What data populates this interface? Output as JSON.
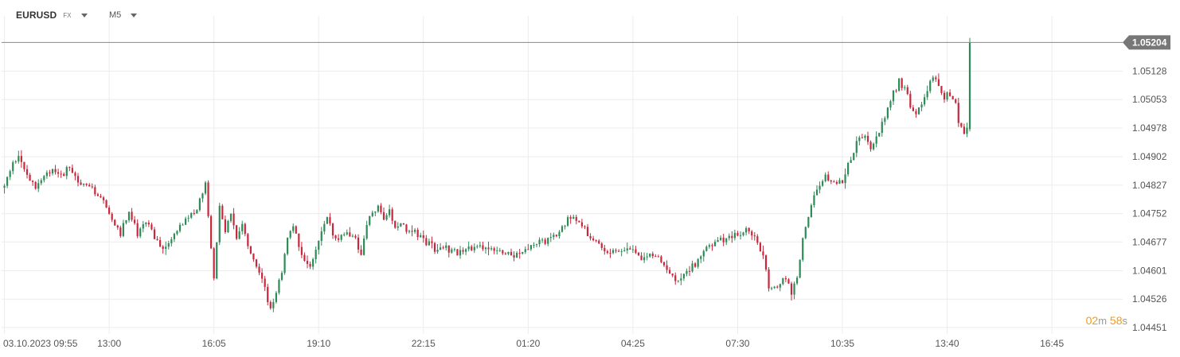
{
  "header": {
    "symbol": "EURUSD",
    "symbol_type": "FX",
    "timeframe": "M5"
  },
  "countdown": {
    "minutes": "02",
    "minutes_unit": "m",
    "seconds": "58",
    "seconds_unit": "s"
  },
  "colors": {
    "up": "#2e8b57",
    "down": "#c8283c",
    "grid": "#ececec",
    "current_price_line": "#888888",
    "current_price_badge": "#777777",
    "countdown": "#f39c12"
  },
  "chart_data": {
    "type": "candlestick",
    "timeframe": "M5",
    "y_ticks": [
      "1.05128",
      "1.05053",
      "1.04978",
      "1.04902",
      "1.04827",
      "1.04752",
      "1.04677",
      "1.04601",
      "1.04526",
      "1.04451"
    ],
    "x_ticks": [
      "03.10.2023  09:55",
      "13:00",
      "16:05",
      "19:10",
      "22:15",
      "01:20",
      "04:25",
      "07:30",
      "10:35",
      "13:40",
      "16:45"
    ],
    "x_tick_values": [
      0,
      37,
      74,
      111,
      148,
      185,
      222,
      259,
      296,
      333,
      370
    ],
    "ylim": [
      1.04434,
      1.05274
    ],
    "xlim": [
      -1,
      395
    ],
    "current_price": "1.05204",
    "grid": true,
    "price_path": [
      [
        0,
        1.0482
      ],
      [
        3,
        1.0488
      ],
      [
        5,
        1.0491
      ],
      [
        8,
        1.0485
      ],
      [
        11,
        1.0482
      ],
      [
        14,
        1.0485
      ],
      [
        17,
        1.0487
      ],
      [
        20,
        1.0485
      ],
      [
        23,
        1.0488
      ],
      [
        26,
        1.0483
      ],
      [
        29,
        1.0483
      ],
      [
        32,
        1.0481
      ],
      [
        35,
        1.0478
      ],
      [
        38,
        1.0474
      ],
      [
        41,
        1.047
      ],
      [
        44,
        1.0476
      ],
      [
        47,
        1.047
      ],
      [
        50,
        1.0473
      ],
      [
        53,
        1.0469
      ],
      [
        56,
        1.0466
      ],
      [
        59,
        1.0468
      ],
      [
        62,
        1.0472
      ],
      [
        65,
        1.0474
      ],
      [
        68,
        1.0476
      ],
      [
        71,
        1.0484
      ],
      [
        74,
        1.0458
      ],
      [
        76,
        1.0478
      ],
      [
        78,
        1.047
      ],
      [
        80,
        1.0476
      ],
      [
        82,
        1.0468
      ],
      [
        84,
        1.0472
      ],
      [
        86,
        1.0466
      ],
      [
        88,
        1.0463
      ],
      [
        90,
        1.046
      ],
      [
        92,
        1.0455
      ],
      [
        94,
        1.045
      ],
      [
        96,
        1.0454
      ],
      [
        98,
        1.046
      ],
      [
        100,
        1.0468
      ],
      [
        102,
        1.0472
      ],
      [
        104,
        1.0467
      ],
      [
        106,
        1.0463
      ],
      [
        108,
        1.0462
      ],
      [
        110,
        1.0466
      ],
      [
        112,
        1.047
      ],
      [
        114,
        1.0474
      ],
      [
        116,
        1.047
      ],
      [
        118,
        1.0469
      ],
      [
        121,
        1.047
      ],
      [
        124,
        1.0468
      ],
      [
        126,
        1.0465
      ],
      [
        128,
        1.0472
      ],
      [
        130,
        1.0476
      ],
      [
        132,
        1.0477
      ],
      [
        134,
        1.0474
      ],
      [
        136,
        1.0476
      ],
      [
        138,
        1.0472
      ],
      [
        140,
        1.0473
      ],
      [
        142,
        1.047
      ],
      [
        145,
        1.047
      ],
      [
        148,
        1.0468
      ],
      [
        152,
        1.0466
      ],
      [
        156,
        1.0466
      ],
      [
        160,
        1.0465
      ],
      [
        164,
        1.0466
      ],
      [
        168,
        1.0466
      ],
      [
        172,
        1.0466
      ],
      [
        176,
        1.0465
      ],
      [
        180,
        1.0464
      ],
      [
        184,
        1.0466
      ],
      [
        188,
        1.0468
      ],
      [
        192,
        1.0468
      ],
      [
        196,
        1.047
      ],
      [
        199,
        1.0474
      ],
      [
        202,
        1.0474
      ],
      [
        205,
        1.0471
      ],
      [
        208,
        1.0468
      ],
      [
        211,
        1.0466
      ],
      [
        213,
        1.0464
      ],
      [
        216,
        1.0466
      ],
      [
        219,
        1.0466
      ],
      [
        222,
        1.0465
      ],
      [
        225,
        1.0463
      ],
      [
        228,
        1.0464
      ],
      [
        231,
        1.0464
      ],
      [
        234,
        1.046
      ],
      [
        237,
        1.0458
      ],
      [
        240,
        1.0459
      ],
      [
        244,
        1.0462
      ],
      [
        248,
        1.0466
      ],
      [
        252,
        1.0468
      ],
      [
        256,
        1.0469
      ],
      [
        259,
        1.047
      ],
      [
        262,
        1.0471
      ],
      [
        264,
        1.047
      ],
      [
        266,
        1.0468
      ],
      [
        268,
        1.0464
      ],
      [
        270,
        1.0456
      ],
      [
        272,
        1.0455
      ],
      [
        274,
        1.0457
      ],
      [
        276,
        1.0458
      ],
      [
        278,
        1.0454
      ],
      [
        280,
        1.0458
      ],
      [
        282,
        1.0468
      ],
      [
        284,
        1.0474
      ],
      [
        286,
        1.048
      ],
      [
        288,
        1.0482
      ],
      [
        290,
        1.0485
      ],
      [
        292,
        1.0484
      ],
      [
        294,
        1.0483
      ],
      [
        296,
        1.0484
      ],
      [
        298,
        1.0488
      ],
      [
        300,
        1.0492
      ],
      [
        302,
        1.0495
      ],
      [
        304,
        1.0495
      ],
      [
        306,
        1.0492
      ],
      [
        308,
        1.0495
      ],
      [
        310,
        1.0499
      ],
      [
        312,
        1.0503
      ],
      [
        314,
        1.0507
      ],
      [
        316,
        1.051
      ],
      [
        318,
        1.0508
      ],
      [
        320,
        1.0504
      ],
      [
        322,
        1.0501
      ],
      [
        324,
        1.0504
      ],
      [
        326,
        1.0508
      ],
      [
        328,
        1.0512
      ],
      [
        330,
        1.0509
      ],
      [
        332,
        1.0506
      ],
      [
        334,
        1.0507
      ],
      [
        336,
        1.0504
      ],
      [
        337,
        1.05
      ],
      [
        338,
        1.0498
      ],
      [
        339,
        1.0497
      ],
      [
        340,
        1.04975
      ],
      [
        341,
        1.05204
      ]
    ]
  }
}
